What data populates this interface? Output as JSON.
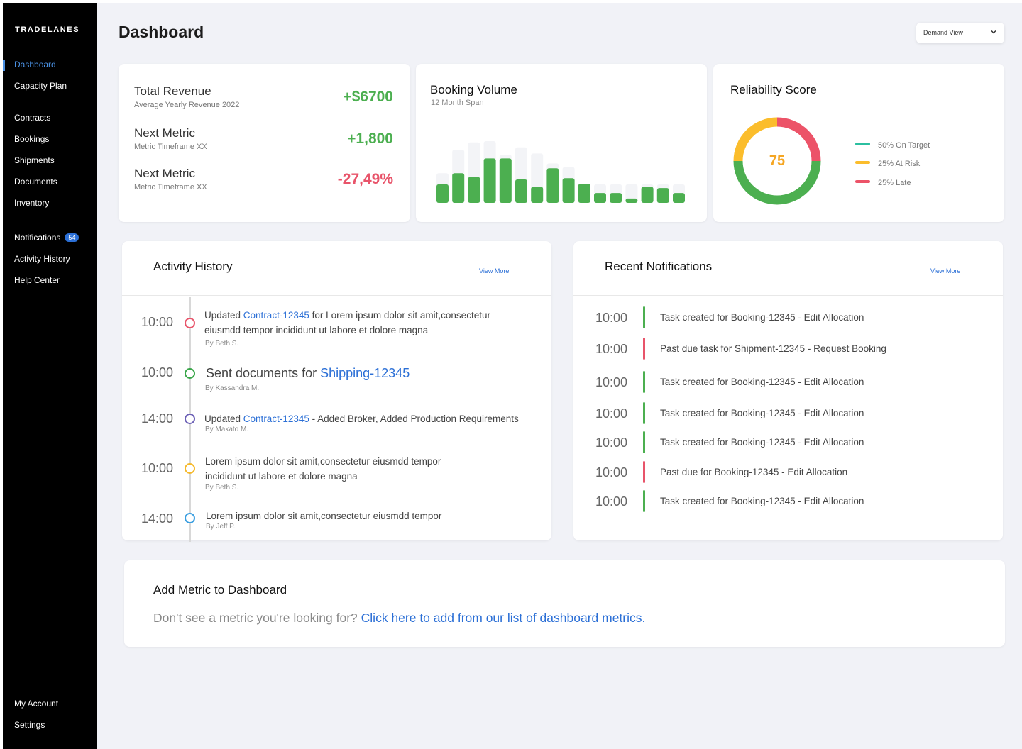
{
  "app": {
    "logo": "TRADELANES"
  },
  "sidebar": {
    "items": [
      {
        "label": "Dashboard"
      },
      {
        "label": "Capacity Plan"
      },
      {
        "label": "Contracts"
      },
      {
        "label": "Bookings"
      },
      {
        "label": "Shipments"
      },
      {
        "label": "Documents"
      },
      {
        "label": "Inventory"
      },
      {
        "label": "Notifications",
        "badge": "54"
      },
      {
        "label": "Activity History"
      },
      {
        "label": "Help Center"
      },
      {
        "label": "My Account"
      },
      {
        "label": "Settings"
      }
    ],
    "active_index": 0
  },
  "header": {
    "title": "Dashboard",
    "view_select": "Demand View"
  },
  "metrics": {
    "rows": [
      {
        "title": "Total Revenue",
        "subtitle": "Average Yearly Revenue 2022",
        "value": "+$6700"
      },
      {
        "title": "Next Metric",
        "subtitle": "Metric Timeframe XX",
        "value": "+1,800"
      },
      {
        "title": "Next Metric",
        "subtitle": "Metric Timeframe XX",
        "value": "-27,49%"
      }
    ],
    "colors": {
      "positive": "#4caf50",
      "negative": "#e8546a"
    }
  },
  "booking_volume": {
    "title": "Booking Volume",
    "subtitle": "12 Month Span"
  },
  "chart_data": {
    "type": "bar",
    "title": "Booking Volume",
    "subtitle": "12 Month Span",
    "series": [
      {
        "values": [
          48,
          86,
          98,
          100,
          78,
          90,
          80,
          64,
          58,
          30,
          30,
          30,
          30,
          30,
          30,
          30
        ]
      },
      {
        "values": [
          30,
          48,
          42,
          72,
          72,
          38,
          26,
          56,
          40,
          31,
          16,
          16,
          7,
          26,
          24,
          16
        ]
      }
    ],
    "ylim": [
      0,
      100
    ],
    "colors": {
      "foreground": "#4caf50",
      "background": "#f3f4f7"
    }
  },
  "reliability": {
    "title": "Reliability Score",
    "score": "75",
    "score_color": "#f5a623",
    "segments": [
      {
        "label": "50% On Target",
        "value": 50,
        "color": "#4caf50",
        "legend_color": "#2bbfa0"
      },
      {
        "label": "25% At Risk",
        "value": 25,
        "color": "#fbbd2c",
        "legend_color": "#fbbd2c"
      },
      {
        "label": "25% Late",
        "value": 25,
        "color": "#ec5368",
        "legend_color": "#ec5368"
      }
    ]
  },
  "activity": {
    "title": "Activity History",
    "view_more": "View More",
    "items": [
      {
        "time": "10:00",
        "dot_color": "#e8546a",
        "pre": "Updated ",
        "link": "Contract-12345",
        "post": " for Lorem ipsum dolor sit amit,consectetur eiusmdd tempor incididunt ut labore et dolore magna",
        "by": "By Beth S."
      },
      {
        "time": "10:00",
        "dot_color": "#3aa64a",
        "pre": "Sent documents for ",
        "link": "Shipping-12345",
        "post": "",
        "by": "By Kassandra M."
      },
      {
        "time": "14:00",
        "dot_color": "#6b5fb5",
        "pre": "Updated ",
        "link": "Contract-12345",
        "post": " - Added Broker, Added Production Requirements",
        "by": "By Makato M."
      },
      {
        "time": "10:00",
        "dot_color": "#f5b92c",
        "pre": "Lorem ipsum dolor sit amit,consectetur eiusmdd tempor incididunt ut labore et dolore magna",
        "link": "",
        "post": "",
        "by": "By Beth S."
      },
      {
        "time": "14:00",
        "dot_color": "#3a9ee0",
        "pre": "Lorem ipsum dolor sit amit,consectetur eiusmdd tempor",
        "link": "",
        "post": "",
        "by": "By Jeff P."
      }
    ]
  },
  "notifications": {
    "title": "Recent Notifications",
    "view_more": "View More",
    "items": [
      {
        "time": "10:00",
        "text": "Task created for Booking-12345 - Edit Allocation",
        "status_color": "#4caf50"
      },
      {
        "time": "10:00",
        "text": "Past due task for Shipment-12345 - Request Booking",
        "status_color": "#e8546a"
      },
      {
        "time": "10:00",
        "text": "Task created for Booking-12345 - Edit Allocation",
        "status_color": "#4caf50"
      },
      {
        "time": "10:00",
        "text": "Task created for Booking-12345 - Edit Allocation",
        "status_color": "#4caf50"
      },
      {
        "time": "10:00",
        "text": "Task created for Booking-12345 - Edit Allocation",
        "status_color": "#4caf50"
      },
      {
        "time": "10:00",
        "text": "Past due for Booking-12345 - Edit Allocation",
        "status_color": "#e8546a"
      },
      {
        "time": "10:00",
        "text": "Task created for Booking-12345 - Edit Allocation",
        "status_color": "#4caf50"
      }
    ]
  },
  "add_metric": {
    "title": "Add Metric to Dashboard",
    "prompt": "Don't see a metric you're looking for? ",
    "link": "Click here to add from our list of dashboard metrics."
  }
}
